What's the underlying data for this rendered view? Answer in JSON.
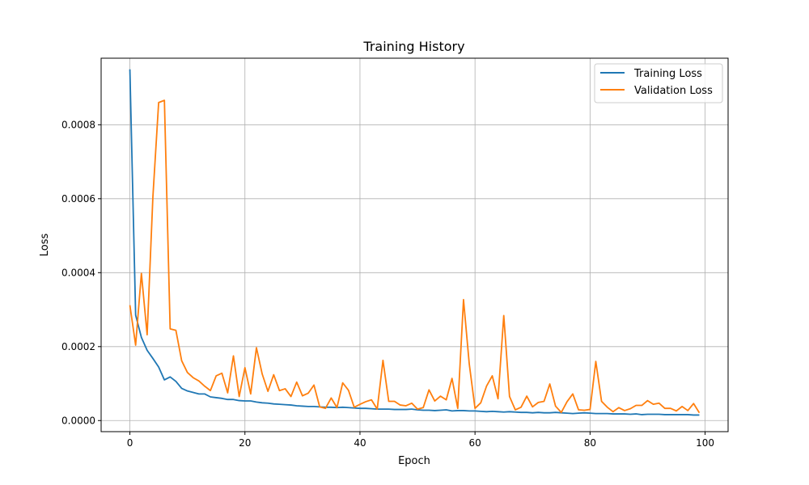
{
  "chart_data": {
    "type": "line",
    "title": "Training History",
    "xlabel": "Epoch",
    "ylabel": "Loss",
    "xlim": [
      -5,
      104
    ],
    "ylim": [
      -3e-05,
      0.00098
    ],
    "xticks": [
      0,
      20,
      40,
      60,
      80,
      100
    ],
    "xtick_labels": [
      "0",
      "20",
      "40",
      "60",
      "80",
      "100"
    ],
    "yticks": [
      0,
      0.0002,
      0.0004,
      0.0006,
      0.0008
    ],
    "ytick_labels": [
      "0.0000",
      "0.0002",
      "0.0004",
      "0.0006",
      "0.0008"
    ],
    "grid": true,
    "legend": "top-right",
    "x": [
      0,
      1,
      2,
      3,
      4,
      5,
      6,
      7,
      8,
      9,
      10,
      11,
      12,
      13,
      14,
      15,
      16,
      17,
      18,
      19,
      20,
      21,
      22,
      23,
      24,
      25,
      26,
      27,
      28,
      29,
      30,
      31,
      32,
      33,
      34,
      35,
      36,
      37,
      38,
      39,
      40,
      41,
      42,
      43,
      44,
      45,
      46,
      47,
      48,
      49,
      50,
      51,
      52,
      53,
      54,
      55,
      56,
      57,
      58,
      59,
      60,
      61,
      62,
      63,
      64,
      65,
      66,
      67,
      68,
      69,
      70,
      71,
      72,
      73,
      74,
      75,
      76,
      77,
      78,
      79,
      80,
      81,
      82,
      83,
      84,
      85,
      86,
      87,
      88,
      89,
      90,
      91,
      92,
      93,
      94,
      95,
      96,
      97,
      98,
      99
    ],
    "series": [
      {
        "name": "Training Loss",
        "color": "#1f77b4",
        "values": [
          0.00095,
          0.000285,
          0.000225,
          0.00019,
          0.000168,
          0.000145,
          0.00011,
          0.000118,
          0.000106,
          8.7e-05,
          8e-05,
          7.6e-05,
          7.2e-05,
          7.2e-05,
          6.4e-05,
          6.2e-05,
          6e-05,
          5.7e-05,
          5.7e-05,
          5.4e-05,
          5.3e-05,
          5.3e-05,
          5e-05,
          4.8e-05,
          4.7e-05,
          4.5e-05,
          4.4e-05,
          4.3e-05,
          4.2e-05,
          4e-05,
          3.9e-05,
          3.8e-05,
          3.8e-05,
          3.7e-05,
          3.6e-05,
          3.6e-05,
          3.5e-05,
          3.6e-05,
          3.5e-05,
          3.4e-05,
          3.3e-05,
          3.3e-05,
          3.2e-05,
          3.1e-05,
          3.1e-05,
          3.1e-05,
          3e-05,
          3e-05,
          3e-05,
          3.1e-05,
          2.9e-05,
          2.8e-05,
          2.8e-05,
          2.7e-05,
          2.8e-05,
          2.9e-05,
          2.6e-05,
          2.7e-05,
          2.7e-05,
          2.6e-05,
          2.6e-05,
          2.5e-05,
          2.4e-05,
          2.5e-05,
          2.4e-05,
          2.3e-05,
          2.4e-05,
          2.3e-05,
          2.2e-05,
          2.2e-05,
          2.1e-05,
          2.2e-05,
          2.1e-05,
          2.1e-05,
          2.2e-05,
          2.1e-05,
          2e-05,
          1.9e-05,
          2e-05,
          2.1e-05,
          2e-05,
          1.9e-05,
          1.9e-05,
          1.9e-05,
          1.8e-05,
          1.8e-05,
          1.8e-05,
          1.7e-05,
          1.8e-05,
          1.6e-05,
          1.7e-05,
          1.7e-05,
          1.7e-05,
          1.6e-05,
          1.6e-05,
          1.6e-05,
          1.6e-05,
          1.6e-05,
          1.5e-05,
          1.5e-05
        ]
      },
      {
        "name": "Validation Loss",
        "color": "#ff7f0e",
        "values": [
          0.000312,
          0.000204,
          0.000398,
          0.000232,
          0.000605,
          0.00086,
          0.000866,
          0.000248,
          0.000244,
          0.000162,
          0.00013,
          0.000116,
          0.000107,
          9.3e-05,
          8.1e-05,
          0.000121,
          0.000128,
          7.5e-05,
          0.000175,
          6.5e-05,
          0.000143,
          7.2e-05,
          0.000197,
          0.000126,
          7.9e-05,
          0.000124,
          8.1e-05,
          8.6e-05,
          6.5e-05,
          0.000104,
          6.7e-05,
          7.4e-05,
          9.6e-05,
          3.7e-05,
          3.3e-05,
          6.1e-05,
          3.5e-05,
          0.000102,
          8.2e-05,
          3.6e-05,
          4.4e-05,
          5.1e-05,
          5.6e-05,
          3.1e-05,
          0.000163,
          5.2e-05,
          5.2e-05,
          4.2e-05,
          4e-05,
          4.7e-05,
          3.1e-05,
          3.5e-05,
          8.3e-05,
          5.3e-05,
          6.6e-05,
          5.6e-05,
          0.000114,
          3.3e-05,
          0.000327,
          0.000153,
          3.3e-05,
          4.8e-05,
          9.3e-05,
          0.000121,
          5.9e-05,
          0.000284,
          6.5e-05,
          2.9e-05,
          3.6e-05,
          6.6e-05,
          3.7e-05,
          4.9e-05,
          5.2e-05,
          9.9e-05,
          3.9e-05,
          2.2e-05,
          5.1e-05,
          7.2e-05,
          2.9e-05,
          2.8e-05,
          3e-05,
          0.00016,
          5.2e-05,
          3.6e-05,
          2.4e-05,
          3.5e-05,
          2.7e-05,
          3.2e-05,
          4.1e-05,
          4.1e-05,
          5.4e-05,
          4.4e-05,
          4.7e-05,
          3.3e-05,
          3.3e-05,
          2.6e-05,
          3.8e-05,
          2.7e-05,
          4.6e-05,
          2.1e-05
        ]
      }
    ]
  }
}
